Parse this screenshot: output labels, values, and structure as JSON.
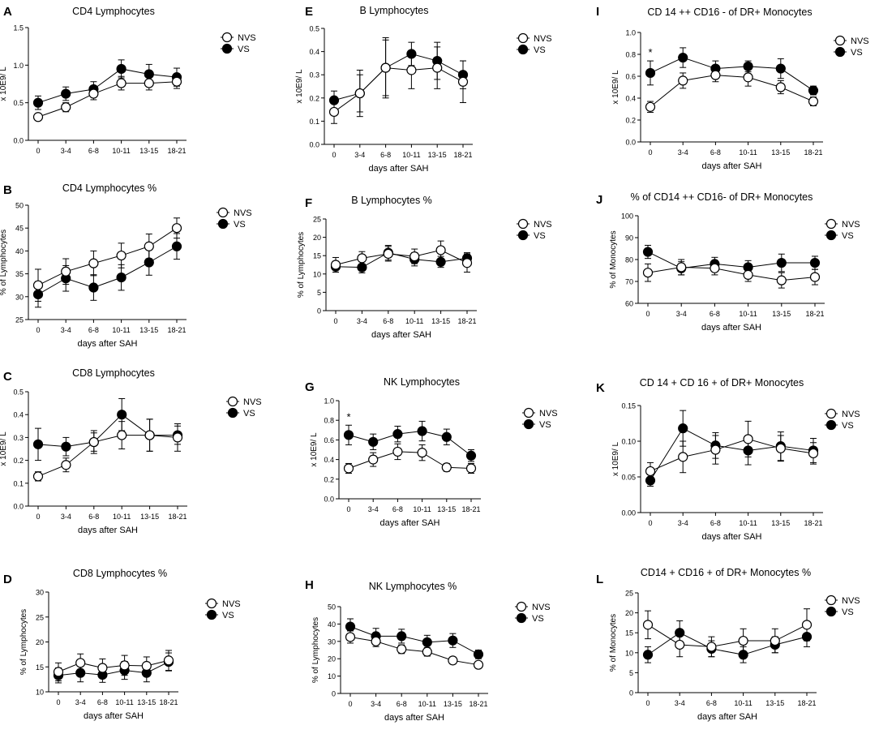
{
  "figure": {
    "x_tick_labels": [
      "0",
      "3-4",
      "6-8",
      "10-11",
      "13-15",
      "18-21"
    ],
    "xlabel": "days after SAH",
    "series_names": [
      "NVS",
      "VS"
    ]
  },
  "chart_data": [
    {
      "type": "line",
      "letter": "A",
      "title": "CD4 Lymphocytes",
      "ylabel": "x 10E9/ L",
      "xlabel": "",
      "ylim": [
        0,
        1.5
      ],
      "yticks": [
        "0.0",
        "0.5",
        "1.0",
        "1.5"
      ],
      "categories": [
        "0",
        "3-4",
        "6-8",
        "10-11",
        "13-15",
        "18-21"
      ],
      "series": [
        {
          "name": "NVS",
          "values": [
            0.31,
            0.44,
            0.62,
            0.76,
            0.76,
            0.78
          ],
          "errors": [
            0.04,
            0.06,
            0.08,
            0.09,
            0.09,
            0.09
          ]
        },
        {
          "name": "VS",
          "values": [
            0.5,
            0.62,
            0.68,
            0.95,
            0.88,
            0.84
          ],
          "errors": [
            0.09,
            0.09,
            0.1,
            0.12,
            0.13,
            0.12
          ]
        }
      ],
      "annotations": []
    },
    {
      "type": "line",
      "letter": "B",
      "title": "CD4 Lymphocytes %",
      "ylabel": "% of Lymphocytes",
      "xlabel": "days after SAH",
      "ylim": [
        25,
        50
      ],
      "yticks": [
        "25",
        "30",
        "35",
        "40",
        "45",
        "50"
      ],
      "categories": [
        "0",
        "3-4",
        "6-8",
        "10-11",
        "13-15",
        "18-21"
      ],
      "series": [
        {
          "name": "NVS",
          "values": [
            32.5,
            35.5,
            37.3,
            39,
            41,
            45
          ],
          "errors": [
            3.5,
            2.8,
            2.7,
            2.7,
            2.7,
            2.2
          ]
        },
        {
          "name": "VS",
          "values": [
            30.5,
            34,
            32,
            34.2,
            37.5,
            41
          ],
          "errors": [
            2.8,
            2.8,
            2.8,
            2.8,
            2.8,
            2.8
          ]
        }
      ],
      "annotations": []
    },
    {
      "type": "line",
      "letter": "C",
      "title": "CD8 Lymphocytes",
      "ylabel": "x 10E9/ L",
      "xlabel": "days after SAH",
      "ylim": [
        0,
        0.5
      ],
      "yticks": [
        "0.0",
        "0.1",
        "0.2",
        "0.3",
        "0.4",
        "0.5"
      ],
      "categories": [
        "0",
        "3-4",
        "6-8",
        "10-11",
        "13-15",
        "18-21"
      ],
      "series": [
        {
          "name": "NVS",
          "values": [
            0.13,
            0.18,
            0.28,
            0.31,
            0.31,
            0.3
          ],
          "errors": [
            0.02,
            0.03,
            0.04,
            0.06,
            0.07,
            0.06
          ]
        },
        {
          "name": "VS",
          "values": [
            0.27,
            0.26,
            0.28,
            0.4,
            0.31,
            0.31
          ],
          "errors": [
            0.07,
            0.04,
            0.05,
            0.07,
            0.07,
            0.04
          ]
        }
      ],
      "annotations": []
    },
    {
      "type": "line",
      "letter": "D",
      "title": "CD8 Lymphocytes %",
      "ylabel": "% of Lymphocytes",
      "xlabel": "days after SAH",
      "ylim": [
        10,
        30
      ],
      "yticks": [
        "10",
        "15",
        "20",
        "25",
        "30"
      ],
      "categories": [
        "0",
        "3-4",
        "6-8",
        "10-11",
        "13-15",
        "18-21"
      ],
      "series": [
        {
          "name": "NVS",
          "values": [
            14,
            15.8,
            14.8,
            15.3,
            15.2,
            16.3
          ],
          "errors": [
            1.8,
            1.8,
            1.8,
            2,
            1.8,
            2
          ]
        },
        {
          "name": "VS",
          "values": [
            13.3,
            13.8,
            13.4,
            14.3,
            13.8,
            16
          ],
          "errors": [
            1.5,
            1.8,
            1.5,
            1.8,
            1.8,
            1.8
          ]
        }
      ],
      "annotations": []
    },
    {
      "type": "line",
      "letter": "E",
      "title": "B  Lymphocytes",
      "ylabel": "x 10E9/ L",
      "xlabel": "days after SAH",
      "ylim": [
        0,
        0.5
      ],
      "yticks": [
        "0.0",
        "0.1",
        "0.2",
        "0.3",
        "0.4",
        "0.5"
      ],
      "categories": [
        "0",
        "3-4",
        "6-8",
        "10-11",
        "13-15",
        "18-21"
      ],
      "series": [
        {
          "name": "NVS",
          "values": [
            0.14,
            0.22,
            0.33,
            0.32,
            0.33,
            0.27
          ],
          "errors": [
            0.05,
            0.08,
            0.12,
            0.08,
            0.09,
            0.09
          ]
        },
        {
          "name": "VS",
          "values": [
            0.19,
            0.22,
            0.33,
            0.39,
            0.36,
            0.3
          ],
          "errors": [
            0.04,
            0.1,
            0.13,
            0.05,
            0.08,
            0.06
          ]
        }
      ],
      "annotations": []
    },
    {
      "type": "line",
      "letter": "F",
      "title": "B Lymphocytes %",
      "ylabel": "% of Lymphocytes",
      "xlabel": "days after SAH",
      "ylim": [
        0,
        25
      ],
      "yticks": [
        "0",
        "5",
        "10",
        "15",
        "20",
        "25"
      ],
      "categories": [
        "0",
        "3-4",
        "6-8",
        "10-11",
        "13-15",
        "18-21"
      ],
      "series": [
        {
          "name": "NVS",
          "values": [
            12.5,
            14.3,
            15.5,
            14.8,
            16.5,
            13
          ],
          "errors": [
            2,
            1.8,
            2,
            2,
            2.5,
            2.5
          ]
        },
        {
          "name": "VS",
          "values": [
            12,
            11.8,
            15.8,
            14,
            13.3,
            14.3
          ],
          "errors": [
            1.5,
            1.5,
            2,
            1.8,
            1.5,
            1.5
          ]
        }
      ],
      "annotations": []
    },
    {
      "type": "line",
      "letter": "G",
      "title": "NK Lymphocytes",
      "ylabel": "x 10E9/ L",
      "xlabel": "days after SAH",
      "ylim": [
        0,
        1.0
      ],
      "yticks": [
        "0.0",
        "0.2",
        "0.4",
        "0.6",
        "0.8",
        "1.0"
      ],
      "categories": [
        "0",
        "3-4",
        "6-8",
        "10-11",
        "13-15",
        "18-21"
      ],
      "series": [
        {
          "name": "NVS",
          "values": [
            0.31,
            0.4,
            0.48,
            0.47,
            0.32,
            0.31
          ],
          "errors": [
            0.05,
            0.07,
            0.08,
            0.08,
            0.04,
            0.05
          ]
        },
        {
          "name": "VS",
          "values": [
            0.65,
            0.58,
            0.66,
            0.69,
            0.63,
            0.44
          ],
          "errors": [
            0.1,
            0.08,
            0.08,
            0.1,
            0.08,
            0.06
          ]
        }
      ],
      "annotations": [
        "*"
      ]
    },
    {
      "type": "line",
      "letter": "H",
      "title": "NK Lymphocytes %",
      "ylabel": "% of Lymphocytes",
      "xlabel": "days after SAH",
      "ylim": [
        0,
        50
      ],
      "yticks": [
        "0",
        "10",
        "20",
        "30",
        "40",
        "50"
      ],
      "categories": [
        "0",
        "3-4",
        "6-8",
        "10-11",
        "13-15",
        "18-21"
      ],
      "series": [
        {
          "name": "NVS",
          "values": [
            32.5,
            30,
            25.5,
            24,
            19,
            16.5
          ],
          "errors": [
            3.5,
            3,
            2.5,
            2.5,
            2,
            2
          ]
        },
        {
          "name": "VS",
          "values": [
            38.5,
            33,
            33,
            29.5,
            30.5,
            22.5
          ],
          "errors": [
            4.5,
            4.5,
            4,
            4,
            4,
            2.5
          ]
        }
      ],
      "annotations": []
    },
    {
      "type": "line",
      "letter": "I",
      "title": "CD 14 ++  CD16 - of DR+ Monocytes",
      "ylabel": "x 10E9/ L",
      "xlabel": "days after SAH",
      "ylim": [
        0,
        1.0
      ],
      "yticks": [
        "0.0",
        "0.2",
        "0.4",
        "0.6",
        "0.8",
        "1.0"
      ],
      "categories": [
        "0",
        "3-4",
        "6-8",
        "10-11",
        "13-15",
        "18-21"
      ],
      "series": [
        {
          "name": "NVS",
          "values": [
            0.32,
            0.56,
            0.61,
            0.59,
            0.5,
            0.37
          ],
          "errors": [
            0.05,
            0.07,
            0.06,
            0.08,
            0.06,
            0.04
          ]
        },
        {
          "name": "VS",
          "values": [
            0.63,
            0.77,
            0.67,
            0.69,
            0.67,
            0.47
          ],
          "errors": [
            0.11,
            0.09,
            0.07,
            0.05,
            0.09,
            0.04
          ]
        }
      ],
      "annotations": [
        "*"
      ]
    },
    {
      "type": "line",
      "letter": "J",
      "title": "% of CD14 ++  CD16- of DR+ Monocytes",
      "ylabel": "% of Monocytes",
      "xlabel": "days after SAH",
      "ylim": [
        60,
        100
      ],
      "yticks": [
        "60",
        "70",
        "80",
        "90",
        "100"
      ],
      "categories": [
        "0",
        "3-4",
        "6-8",
        "10-11",
        "13-15",
        "18-21"
      ],
      "series": [
        {
          "name": "NVS",
          "values": [
            74,
            76.5,
            76,
            73,
            70.5,
            72
          ],
          "errors": [
            4,
            3.5,
            3,
            3,
            3.5,
            3.5
          ]
        },
        {
          "name": "VS",
          "values": [
            83.5,
            76,
            78,
            76.5,
            78.5,
            78.5
          ],
          "errors": [
            3,
            3,
            3,
            3,
            4,
            3
          ]
        }
      ],
      "annotations": []
    },
    {
      "type": "line",
      "letter": "K",
      "title": "CD 14 + CD 16 + of DR+ Monocytes",
      "ylabel": "x 10E9/ L",
      "xlabel": "days after SAH",
      "ylim": [
        0,
        0.15
      ],
      "yticks": [
        "0.00",
        "0.05",
        "0.10",
        "0.15"
      ],
      "categories": [
        "0",
        "3-4",
        "6-8",
        "10-11",
        "13-15",
        "18-21"
      ],
      "series": [
        {
          "name": "NVS",
          "values": [
            0.058,
            0.078,
            0.088,
            0.103,
            0.09,
            0.083
          ],
          "errors": [
            0.012,
            0.022,
            0.02,
            0.025,
            0.018,
            0.015
          ]
        },
        {
          "name": "VS",
          "values": [
            0.045,
            0.118,
            0.094,
            0.087,
            0.093,
            0.087
          ],
          "errors": [
            0.008,
            0.025,
            0.018,
            0.02,
            0.02,
            0.017
          ]
        }
      ],
      "annotations": []
    },
    {
      "type": "line",
      "letter": "L",
      "title": "CD14 + CD16 + of DR+ Monocytes  %",
      "ylabel": "% of Monocytes",
      "xlabel": "days after SAH",
      "ylim": [
        0,
        25
      ],
      "yticks": [
        "0",
        "5",
        "10",
        "15",
        "20",
        "25"
      ],
      "categories": [
        "0",
        "3-4",
        "6-8",
        "10-11",
        "13-15",
        "18-21"
      ],
      "series": [
        {
          "name": "NVS",
          "values": [
            17,
            12,
            11.5,
            13,
            13,
            17
          ],
          "errors": [
            3.5,
            3,
            2.5,
            3,
            3,
            4
          ]
        },
        {
          "name": "VS",
          "values": [
            9.5,
            15,
            11,
            9.5,
            12,
            14
          ],
          "errors": [
            2,
            3,
            2,
            2,
            2,
            2.5
          ]
        }
      ],
      "annotations": []
    }
  ]
}
